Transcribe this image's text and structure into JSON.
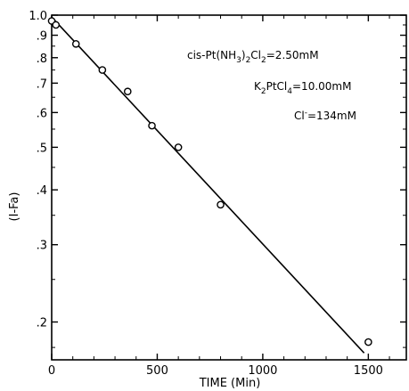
{
  "chart_data": {
    "type": "scatter",
    "xlabel": "TIME (Min)",
    "ylabel": "(I-Fa)",
    "xscale": "linear",
    "yscale": "log",
    "xlim": [
      0,
      1680
    ],
    "ylim": [
      0.164,
      1.0
    ],
    "xticks": [
      0,
      500,
      1000,
      1500
    ],
    "xtick_labels": [
      "0",
      "500",
      "1000",
      "1500"
    ],
    "yticks": [
      1.0,
      0.9,
      0.8,
      0.7,
      0.6,
      0.5,
      0.4,
      0.3,
      0.2
    ],
    "ytick_labels": [
      "1.0",
      ".9",
      ".8",
      ".7",
      ".6",
      ".5",
      ".4",
      ".3",
      ".2"
    ],
    "grid": false,
    "series": [
      {
        "marker": "open-circle",
        "x": [
          0,
          20,
          115,
          240,
          360,
          475,
          600,
          800,
          1500
        ],
        "y": [
          0.97,
          0.95,
          0.86,
          0.75,
          0.67,
          0.56,
          0.5,
          0.37,
          0.18
        ]
      }
    ],
    "fit_line": {
      "x": [
        0,
        1480
      ],
      "y": [
        0.99,
        0.17
      ]
    },
    "annotations": [
      {
        "main": "cis-Pt(NH",
        "sub1": "3",
        "mid": ")",
        "sub2": "2",
        "tail": "Cl",
        "sub3": "2",
        "end": "=2.50mM"
      },
      {
        "main": "K",
        "sub1": "2",
        "mid": "PtCl",
        "sub2": "4",
        "end": "=10.00mM"
      },
      {
        "main": "Cl",
        "sup": "-",
        "end": "=134mM"
      }
    ]
  }
}
